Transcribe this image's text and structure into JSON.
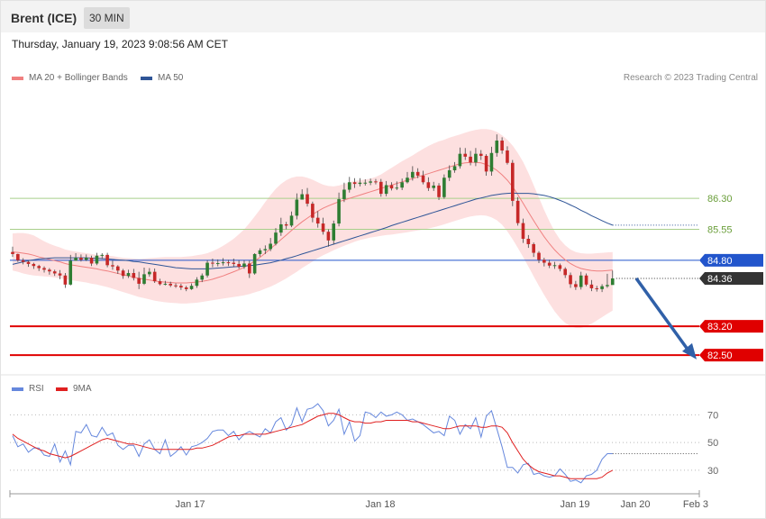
{
  "header": {
    "title": "Brent (ICE)",
    "timeframe": "30 MIN"
  },
  "timestamp": "Thursday, January 19, 2023 9:08:56 AM CET",
  "legend": {
    "ma20": "MA 20 + Bollinger Bands",
    "ma50": "MA 50",
    "credit": "Research © 2023 Trading Central"
  },
  "rsi_legend": {
    "rsi": "RSI",
    "ma9": "9MA"
  },
  "colors": {
    "up": "#2e7d32",
    "down": "#c62828",
    "ma20": "#f08080",
    "ma50": "#2f5597",
    "band": "#fde0e0",
    "resistance": "#a8cf8a",
    "pivot": "#2255cc",
    "support": "#e00000",
    "rsi": "#6688dd",
    "rsi_ma": "#e02020",
    "arrow": "#3060a8",
    "last": "#333333"
  },
  "chart_data": [
    {
      "type": "candlestick",
      "title": "Brent (ICE) 30 MIN",
      "x_labels": [
        "Jan 17",
        "Jan 18",
        "Jan 19",
        "Jan 20",
        "Feb 3"
      ],
      "ylim": [
        82.35,
        88.05
      ],
      "levels": [
        {
          "label": "86.30",
          "value": 86.3,
          "kind": "resistance"
        },
        {
          "label": "85.55",
          "value": 85.55,
          "kind": "resistance"
        },
        {
          "label": "84.80",
          "value": 84.8,
          "kind": "pivot"
        },
        {
          "label": "84.36",
          "value": 84.36,
          "kind": "last"
        },
        {
          "label": "83.20",
          "value": 83.2,
          "kind": "support"
        },
        {
          "label": "82.50",
          "value": 82.5,
          "kind": "support"
        }
      ],
      "close": [
        84.95,
        84.8,
        84.76,
        84.71,
        84.66,
        84.61,
        84.57,
        84.53,
        84.48,
        84.43,
        84.21,
        84.79,
        84.86,
        84.81,
        84.86,
        84.72,
        84.91,
        84.93,
        84.68,
        84.65,
        84.55,
        84.42,
        84.49,
        84.37,
        84.23,
        84.46,
        84.52,
        84.29,
        84.22,
        84.23,
        84.19,
        84.18,
        84.14,
        84.1,
        84.18,
        84.33,
        84.43,
        84.74,
        84.72,
        84.73,
        84.75,
        84.74,
        84.71,
        84.64,
        84.72,
        84.48,
        84.95,
        85.04,
        85.07,
        85.2,
        85.47,
        85.67,
        85.64,
        85.88,
        86.27,
        86.4,
        86.17,
        85.83,
        85.69,
        85.49,
        85.28,
        85.69,
        86.28,
        86.51,
        86.69,
        86.65,
        86.68,
        86.68,
        86.71,
        86.7,
        86.41,
        86.62,
        86.54,
        86.56,
        86.69,
        86.8,
        86.94,
        86.85,
        86.69,
        86.55,
        86.61,
        86.33,
        86.8,
        86.98,
        87.08,
        87.38,
        87.31,
        87.17,
        87.38,
        87.33,
        86.95,
        87.4,
        87.7,
        87.46,
        87.16,
        86.24,
        85.7,
        85.32,
        85.19,
        84.98,
        84.81,
        84.74,
        84.67,
        84.68,
        84.59,
        84.44,
        84.22,
        84.15,
        84.43,
        84.21,
        84.12,
        84.1,
        84.17,
        84.2,
        84.36
      ],
      "high": [
        85.13,
        84.96,
        84.85,
        84.79,
        84.74,
        84.69,
        84.65,
        84.61,
        84.57,
        84.56,
        84.49,
        84.93,
        84.97,
        84.94,
        84.94,
        84.91,
        84.98,
        84.97,
        84.98,
        84.79,
        84.68,
        84.59,
        84.57,
        84.59,
        84.52,
        84.62,
        84.61,
        84.6,
        84.35,
        84.3,
        84.28,
        84.24,
        84.23,
        84.18,
        84.24,
        84.39,
        84.48,
        84.8,
        84.84,
        84.82,
        84.85,
        84.81,
        84.84,
        84.8,
        84.8,
        84.79,
        84.97,
        85.09,
        85.16,
        85.34,
        85.58,
        85.83,
        85.73,
        85.98,
        86.42,
        86.52,
        86.55,
        86.22,
        85.99,
        85.83,
        85.55,
        85.76,
        86.44,
        86.68,
        86.82,
        86.79,
        86.79,
        86.76,
        86.78,
        86.77,
        86.77,
        86.72,
        86.69,
        86.71,
        86.78,
        86.94,
        87.08,
        87.03,
        86.97,
        86.81,
        86.7,
        86.67,
        86.88,
        87.1,
        87.18,
        87.53,
        87.52,
        87.45,
        87.52,
        87.47,
        87.37,
        87.55,
        87.85,
        87.78,
        87.56,
        87.23,
        86.33,
        85.81,
        85.41,
        85.23,
        85.02,
        84.86,
        84.81,
        84.76,
        84.72,
        84.63,
        84.5,
        84.3,
        84.52,
        84.48,
        84.32,
        84.18,
        84.22,
        84.47,
        84.55
      ],
      "low": [
        84.88,
        84.76,
        84.7,
        84.64,
        84.59,
        84.54,
        84.5,
        84.45,
        84.42,
        84.34,
        84.13,
        84.19,
        84.79,
        84.77,
        84.78,
        84.66,
        84.68,
        84.83,
        84.63,
        84.57,
        84.47,
        84.35,
        84.37,
        84.31,
        84.1,
        84.2,
        84.4,
        84.25,
        84.19,
        84.19,
        84.15,
        84.13,
        84.08,
        84.05,
        84.08,
        84.13,
        84.27,
        84.38,
        84.63,
        84.65,
        84.67,
        84.66,
        84.64,
        84.59,
        84.59,
        84.37,
        84.45,
        84.89,
        84.95,
        85.02,
        85.16,
        85.39,
        85.55,
        85.6,
        85.79,
        86.28,
        86.1,
        85.72,
        85.59,
        85.42,
        85.13,
        85.18,
        85.62,
        86.21,
        86.44,
        86.55,
        86.59,
        86.61,
        86.62,
        86.64,
        86.34,
        86.35,
        86.49,
        86.5,
        86.5,
        86.66,
        86.73,
        86.79,
        86.64,
        86.48,
        86.48,
        86.26,
        86.29,
        86.72,
        86.92,
        87.02,
        87.23,
        87.1,
        87.08,
        87.23,
        86.85,
        86.85,
        87.31,
        87.38,
        87.12,
        86.11,
        85.64,
        85.22,
        85.1,
        84.88,
        84.73,
        84.65,
        84.61,
        84.59,
        84.53,
        84.37,
        84.13,
        84.08,
        84.09,
        84.17,
        84.05,
        84.04,
        84.03,
        84.13,
        84.23
      ],
      "ma20": [
        85.0,
        84.99,
        84.97,
        84.95,
        84.92,
        84.88,
        84.85,
        84.82,
        84.79,
        84.76,
        84.72,
        84.69,
        84.67,
        84.65,
        84.63,
        84.61,
        84.59,
        84.56,
        84.54,
        84.51,
        84.48,
        84.45,
        84.42,
        84.39,
        84.36,
        84.34,
        84.32,
        84.3,
        84.28,
        84.27,
        84.26,
        84.25,
        84.25,
        84.25,
        84.26,
        84.27,
        84.29,
        84.31,
        84.34,
        84.38,
        84.42,
        84.47,
        84.52,
        84.57,
        84.63,
        84.7,
        84.78,
        84.87,
        84.97,
        85.08,
        85.19,
        85.3,
        85.41,
        85.52,
        85.63,
        85.73,
        85.82,
        85.91,
        85.99,
        86.06,
        86.12,
        86.17,
        86.22,
        86.26,
        86.3,
        86.34,
        86.38,
        86.42,
        86.46,
        86.5,
        86.54,
        86.58,
        86.62,
        86.66,
        86.7,
        86.74,
        86.78,
        86.82,
        86.86,
        86.9,
        86.94,
        86.98,
        87.02,
        87.06,
        87.1,
        87.14,
        87.16,
        87.17,
        87.17,
        87.16,
        87.12,
        87.06,
        86.98,
        86.87,
        86.74,
        86.58,
        86.39,
        86.18,
        85.97,
        85.76,
        85.56,
        85.37,
        85.2,
        85.05,
        84.92,
        84.81,
        84.72,
        84.65,
        84.6,
        84.57,
        84.55,
        84.54,
        84.54,
        84.55,
        84.56
      ],
      "bb_upper": [
        85.45,
        85.46,
        85.46,
        85.44,
        85.4,
        85.33,
        85.26,
        85.2,
        85.15,
        85.11,
        85.06,
        85.03,
        85.01,
        84.99,
        84.97,
        84.95,
        84.93,
        84.92,
        84.91,
        84.9,
        84.88,
        84.86,
        84.85,
        84.84,
        84.83,
        84.84,
        84.85,
        84.86,
        84.87,
        84.88,
        84.88,
        84.88,
        84.88,
        84.89,
        84.9,
        84.92,
        84.94,
        84.97,
        85.02,
        85.08,
        85.15,
        85.23,
        85.32,
        85.43,
        85.55,
        85.7,
        85.86,
        86.03,
        86.21,
        86.38,
        86.53,
        86.65,
        86.74,
        86.8,
        86.83,
        86.83,
        86.8,
        86.75,
        86.69,
        86.63,
        86.6,
        86.59,
        86.61,
        86.65,
        86.69,
        86.72,
        86.74,
        86.76,
        86.78,
        86.82,
        86.88,
        86.96,
        87.04,
        87.12,
        87.2,
        87.27,
        87.34,
        87.42,
        87.5,
        87.57,
        87.63,
        87.68,
        87.72,
        87.77,
        87.81,
        87.85,
        87.89,
        87.93,
        87.96,
        87.98,
        87.98,
        87.96,
        87.91,
        87.83,
        87.72,
        87.58,
        87.4,
        87.18,
        86.92,
        86.62,
        86.32,
        86.02,
        85.74,
        85.5,
        85.3,
        85.16,
        85.06,
        85.0,
        84.97,
        84.96,
        84.96,
        84.97,
        84.98,
        84.99,
        85.0
      ],
      "bb_lower": [
        84.55,
        84.52,
        84.48,
        84.45,
        84.43,
        84.42,
        84.41,
        84.4,
        84.38,
        84.36,
        84.34,
        84.32,
        84.3,
        84.28,
        84.26,
        84.23,
        84.21,
        84.18,
        84.15,
        84.11,
        84.07,
        84.03,
        83.99,
        83.95,
        83.91,
        83.88,
        83.85,
        83.82,
        83.8,
        83.78,
        83.77,
        83.76,
        83.75,
        83.75,
        83.76,
        83.77,
        83.79,
        83.81,
        83.83,
        83.85,
        83.87,
        83.89,
        83.91,
        83.93,
        83.95,
        83.98,
        84.02,
        84.06,
        84.11,
        84.16,
        84.22,
        84.29,
        84.36,
        84.44,
        84.52,
        84.61,
        84.69,
        84.77,
        84.85,
        84.92,
        84.98,
        85.04,
        85.1,
        85.15,
        85.2,
        85.25,
        85.29,
        85.32,
        85.35,
        85.37,
        85.39,
        85.41,
        85.42,
        85.44,
        85.46,
        85.48,
        85.5,
        85.52,
        85.54,
        85.57,
        85.6,
        85.63,
        85.67,
        85.71,
        85.75,
        85.79,
        85.83,
        85.86,
        85.88,
        85.89,
        85.88,
        85.84,
        85.77,
        85.66,
        85.5,
        85.31,
        85.1,
        84.88,
        84.65,
        84.41,
        84.18,
        83.96,
        83.75,
        83.56,
        83.4,
        83.28,
        83.2,
        83.16,
        83.16,
        83.2,
        83.26,
        83.34,
        83.42,
        83.5,
        83.58
      ],
      "ma50": [
        84.7,
        84.73,
        84.76,
        84.79,
        84.81,
        84.83,
        84.84,
        84.85,
        84.86,
        84.86,
        84.86,
        84.86,
        84.86,
        84.86,
        84.86,
        84.85,
        84.85,
        84.84,
        84.83,
        84.82,
        84.81,
        84.8,
        84.79,
        84.77,
        84.76,
        84.74,
        84.72,
        84.7,
        84.68,
        84.66,
        84.64,
        84.62,
        84.61,
        84.6,
        84.59,
        84.59,
        84.59,
        84.59,
        84.6,
        84.61,
        84.62,
        84.63,
        84.64,
        84.65,
        84.66,
        84.67,
        84.68,
        84.7,
        84.72,
        84.74,
        84.77,
        84.8,
        84.84,
        84.87,
        84.91,
        84.95,
        84.99,
        85.03,
        85.07,
        85.11,
        85.15,
        85.19,
        85.23,
        85.27,
        85.31,
        85.35,
        85.39,
        85.43,
        85.47,
        85.51,
        85.55,
        85.59,
        85.64,
        85.68,
        85.72,
        85.76,
        85.8,
        85.84,
        85.88,
        85.92,
        85.96,
        86.0,
        86.04,
        86.08,
        86.12,
        86.16,
        86.2,
        86.24,
        86.28,
        86.31,
        86.34,
        86.37,
        86.39,
        86.41,
        86.42,
        86.43,
        86.42,
        86.42,
        86.42,
        86.41,
        86.39,
        86.37,
        86.34,
        86.3,
        86.25,
        86.2,
        86.14,
        86.08,
        86.01,
        85.95,
        85.88,
        85.82,
        85.76,
        85.7,
        85.65
      ]
    },
    {
      "type": "line",
      "title": "RSI",
      "ylim": [
        15,
        80
      ],
      "y_ticks": [
        70,
        50,
        30
      ],
      "series": [
        {
          "name": "RSI",
          "values": [
            55,
            47,
            49,
            43,
            46,
            46,
            41,
            40,
            49,
            36,
            44,
            34,
            58,
            57,
            63,
            55,
            54,
            61,
            55,
            57,
            48,
            45,
            48,
            48,
            40,
            49,
            52,
            45,
            42,
            52,
            40,
            43,
            47,
            41,
            47,
            48,
            50,
            53,
            58,
            59,
            59,
            55,
            58,
            52,
            56,
            58,
            56,
            54,
            60,
            57,
            65,
            68,
            59,
            63,
            75,
            65,
            74,
            75,
            78,
            73,
            62,
            66,
            74,
            56,
            65,
            51,
            55,
            72,
            71,
            68,
            72,
            69,
            70,
            72,
            70,
            66,
            67,
            65,
            63,
            60,
            57,
            58,
            55,
            69,
            66,
            56,
            63,
            60,
            68,
            54,
            69,
            73,
            60,
            47,
            32,
            32,
            28,
            34,
            35,
            27,
            28,
            26,
            25,
            26,
            31,
            27,
            22,
            23,
            21,
            26,
            27,
            30,
            38,
            42,
            42
          ]
        },
        {
          "name": "9MA",
          "values": [
            56,
            53,
            51,
            49,
            47,
            45,
            44,
            42,
            41,
            40,
            39,
            40,
            42,
            44,
            46,
            48,
            50,
            52,
            53,
            52,
            51,
            50,
            49,
            49,
            48,
            47,
            46,
            45,
            45,
            45,
            45,
            45,
            45,
            45,
            45,
            46,
            46,
            47,
            48,
            50,
            52,
            54,
            55,
            55,
            56,
            56,
            56,
            56,
            56,
            57,
            58,
            59,
            60,
            61,
            62,
            63,
            65,
            67,
            69,
            70,
            71,
            71,
            70,
            68,
            66,
            65,
            65,
            64,
            64,
            65,
            65,
            66,
            66,
            66,
            66,
            66,
            65,
            65,
            64,
            63,
            62,
            61,
            60,
            60,
            61,
            62,
            62,
            62,
            62,
            61,
            61,
            62,
            62,
            61,
            57,
            50,
            44,
            38,
            34,
            31,
            29,
            28,
            27,
            26,
            26,
            25,
            24,
            24,
            24,
            24,
            24,
            24,
            25,
            28,
            30
          ]
        }
      ]
    }
  ]
}
